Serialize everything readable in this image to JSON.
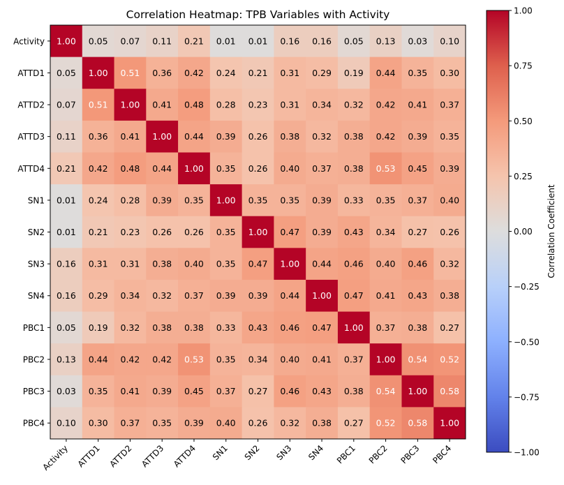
{
  "chart_data": {
    "type": "heatmap",
    "title": "Correlation Heatmap: TPB Variables with Activity",
    "labels": [
      "Activity",
      "ATTD1",
      "ATTD2",
      "ATTD3",
      "ATTD4",
      "SN1",
      "SN2",
      "SN3",
      "SN4",
      "PBC1",
      "PBC2",
      "PBC3",
      "PBC4"
    ],
    "matrix": [
      [
        1.0,
        0.05,
        0.07,
        0.11,
        0.21,
        0.01,
        0.01,
        0.16,
        0.16,
        0.05,
        0.13,
        0.03,
        0.1
      ],
      [
        0.05,
        1.0,
        0.51,
        0.36,
        0.42,
        0.24,
        0.21,
        0.31,
        0.29,
        0.19,
        0.44,
        0.35,
        0.3
      ],
      [
        0.07,
        0.51,
        1.0,
        0.41,
        0.48,
        0.28,
        0.23,
        0.31,
        0.34,
        0.32,
        0.42,
        0.41,
        0.37
      ],
      [
        0.11,
        0.36,
        0.41,
        1.0,
        0.44,
        0.39,
        0.26,
        0.38,
        0.32,
        0.38,
        0.42,
        0.39,
        0.35
      ],
      [
        0.21,
        0.42,
        0.48,
        0.44,
        1.0,
        0.35,
        0.26,
        0.4,
        0.37,
        0.38,
        0.53,
        0.45,
        0.39
      ],
      [
        0.01,
        0.24,
        0.28,
        0.39,
        0.35,
        1.0,
        0.35,
        0.35,
        0.39,
        0.33,
        0.35,
        0.37,
        0.4
      ],
      [
        0.01,
        0.21,
        0.23,
        0.26,
        0.26,
        0.35,
        1.0,
        0.47,
        0.39,
        0.43,
        0.34,
        0.27,
        0.26
      ],
      [
        0.16,
        0.31,
        0.31,
        0.38,
        0.4,
        0.35,
        0.47,
        1.0,
        0.44,
        0.46,
        0.4,
        0.46,
        0.32
      ],
      [
        0.16,
        0.29,
        0.34,
        0.32,
        0.37,
        0.39,
        0.39,
        0.44,
        1.0,
        0.47,
        0.41,
        0.43,
        0.38
      ],
      [
        0.05,
        0.19,
        0.32,
        0.38,
        0.38,
        0.33,
        0.43,
        0.46,
        0.47,
        1.0,
        0.37,
        0.38,
        0.27
      ],
      [
        0.13,
        0.44,
        0.42,
        0.42,
        0.53,
        0.35,
        0.34,
        0.4,
        0.41,
        0.37,
        1.0,
        0.54,
        0.52
      ],
      [
        0.03,
        0.35,
        0.41,
        0.39,
        0.45,
        0.37,
        0.27,
        0.46,
        0.43,
        0.38,
        0.54,
        1.0,
        0.58
      ],
      [
        0.1,
        0.3,
        0.37,
        0.35,
        0.39,
        0.4,
        0.26,
        0.32,
        0.38,
        0.27,
        0.52,
        0.58,
        1.0
      ]
    ],
    "colormap": "coolwarm",
    "vmin": -1.0,
    "vmax": 1.0,
    "colorbar": {
      "label": "Correlation Coefficient",
      "ticks": [
        "1.00",
        "0.75",
        "0.50",
        "0.25",
        "0.00",
        "−0.25",
        "−0.50",
        "−0.75",
        "−1.00"
      ],
      "tick_values": [
        1.0,
        0.75,
        0.5,
        0.25,
        0.0,
        -0.25,
        -0.5,
        -0.75,
        -1.0
      ]
    }
  }
}
